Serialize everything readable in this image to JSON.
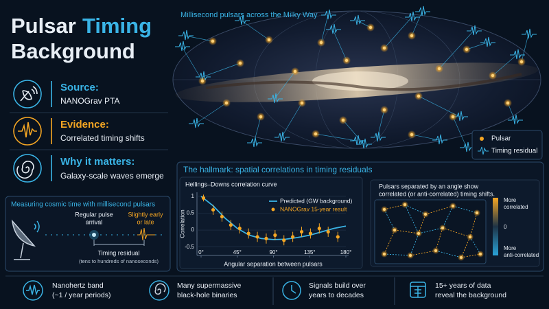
{
  "header": {
    "title_white": "Pulsar",
    "title_accent": "Timing",
    "title_line2": "Background"
  },
  "features": [
    {
      "heading": "Source:",
      "text": "NANOGrav PTA"
    },
    {
      "heading": "Evidence:",
      "text": "Correlated timing shifts"
    },
    {
      "heading": "Why it matters:",
      "text": "Galaxy-scale waves emerge"
    }
  ],
  "sky_map": {
    "title": "Millisecond pulsars across the Milky Way",
    "legend": [
      "Pulsar",
      "Timing residual"
    ]
  },
  "timing_box": {
    "title": "Measuring cosmic time with millisecond pulsars",
    "regular": [
      "Regular pulse",
      "arrival"
    ],
    "shifted": [
      "Slightly early",
      "or late"
    ],
    "residual": "Timing residual",
    "residual_note": "(tens to hundreds of nanoseconds)"
  },
  "hallmark": {
    "title": "The hallmark: spatial correlations in timing residuals",
    "chart": {
      "type": "line",
      "title": "Hellings–Downs correlation curve",
      "y_label": "Correlation",
      "x_label": "Angular separation between pulsars",
      "xlim": [
        0,
        180
      ],
      "ylim": [
        -0.75,
        1.12
      ],
      "xticks": [
        {
          "value": 0,
          "label": "0°"
        },
        {
          "value": 45,
          "label": "45°"
        },
        {
          "value": 90,
          "label": "90°"
        },
        {
          "value": 135,
          "label": "135°"
        },
        {
          "value": 180,
          "label": "180°"
        }
      ],
      "yticks": [
        1,
        0.5,
        0,
        -0.5
      ],
      "series": [
        {
          "name": "Predicted (GW background)",
          "color": "#3ab4e6",
          "x": [
            0,
            15,
            30,
            45,
            60,
            75,
            90,
            105,
            120,
            135,
            150,
            165,
            180
          ],
          "values": [
            1,
            0.72,
            0.35,
            0.05,
            -0.15,
            -0.25,
            -0.28,
            -0.27,
            -0.22,
            -0.15,
            -0.05,
            0.05,
            0.12
          ]
        },
        {
          "name": "NANOGrav 15-year result",
          "color": "#f5a623",
          "x": [
            3,
            15,
            26,
            37,
            48,
            59,
            70,
            81,
            92,
            103,
            114,
            125,
            136,
            147,
            158,
            170
          ],
          "values": [
            0.95,
            0.6,
            0.4,
            0.15,
            0.05,
            -0.1,
            -0.2,
            -0.25,
            -0.15,
            -0.3,
            -0.2,
            -0.05,
            -0.1,
            0.05,
            -0.05,
            -0.2
          ],
          "errors": [
            0.1,
            0.15,
            0.15,
            0.15,
            0.15,
            0.15,
            0.15,
            0.15,
            0.15,
            0.15,
            0.15,
            0.15,
            0.15,
            0.15,
            0.15,
            0.15
          ]
        }
      ]
    }
  },
  "correlation_panel": {
    "caption": [
      "Pulsars separated by an angle show",
      "correlated (or anti-correlated) timing shifts."
    ],
    "colorbar": {
      "top": [
        "More",
        "correlated"
      ],
      "mid": "0",
      "bottom": [
        "More",
        "anti-correlated"
      ]
    }
  },
  "footer": [
    [
      "Nanohertz band",
      "(~1 / year periods)"
    ],
    [
      "Many supermassive",
      "black-hole binaries"
    ],
    [
      "Signals build over",
      "years to decades"
    ],
    [
      "15+ years of data",
      "reveal the background"
    ]
  ]
}
